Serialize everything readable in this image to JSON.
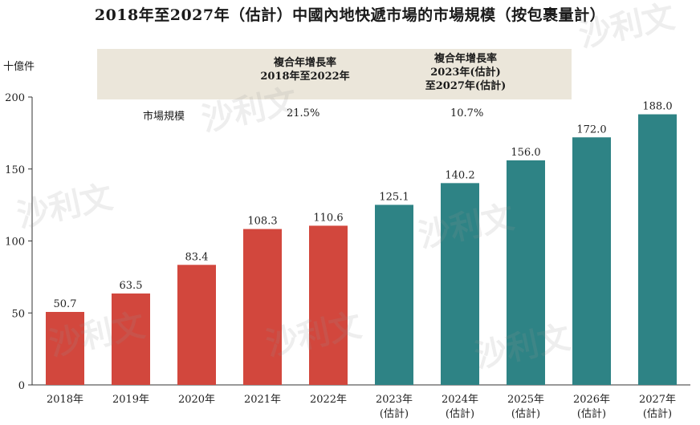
{
  "chart_data": {
    "type": "bar",
    "title": "2018年至2027年（估計）中國內地快遞市場的市場規模（按包裹量計）",
    "unit_label": "十億件",
    "categories": [
      {
        "line1": "2018年",
        "line2": ""
      },
      {
        "line1": "2019年",
        "line2": ""
      },
      {
        "line1": "2020年",
        "line2": ""
      },
      {
        "line1": "2021年",
        "line2": ""
      },
      {
        "line1": "2022年",
        "line2": ""
      },
      {
        "line1": "2023年",
        "line2": "(估計)"
      },
      {
        "line1": "2024年",
        "line2": "(估計)"
      },
      {
        "line1": "2025年",
        "line2": "(估計)"
      },
      {
        "line1": "2026年",
        "line2": "(估計)"
      },
      {
        "line1": "2027年",
        "line2": "(估計)"
      }
    ],
    "values": [
      50.7,
      63.5,
      83.4,
      108.3,
      110.6,
      125.1,
      140.2,
      156.0,
      172.0,
      188.0
    ],
    "value_labels": [
      "50.7",
      "63.5",
      "83.4",
      "108.3",
      "110.6",
      "125.1",
      "140.2",
      "156.0",
      "172.0",
      "188.0"
    ],
    "yticks": [
      "0",
      "50",
      "100",
      "150",
      "200"
    ],
    "ylim": [
      0,
      200
    ],
    "colors": {
      "historical": "#d2473d",
      "forecast": "#2e8385"
    },
    "historical_count": 5,
    "cagr": {
      "header1": [
        "複合年增長率",
        "2018年至2022年"
      ],
      "header2": [
        "複合年增長率",
        "2023年(估計)",
        "至2027年(估計)"
      ],
      "row_label": "市場規模",
      "value1": "21.5%",
      "value2": "10.7%"
    }
  },
  "watermark": "沙利文"
}
